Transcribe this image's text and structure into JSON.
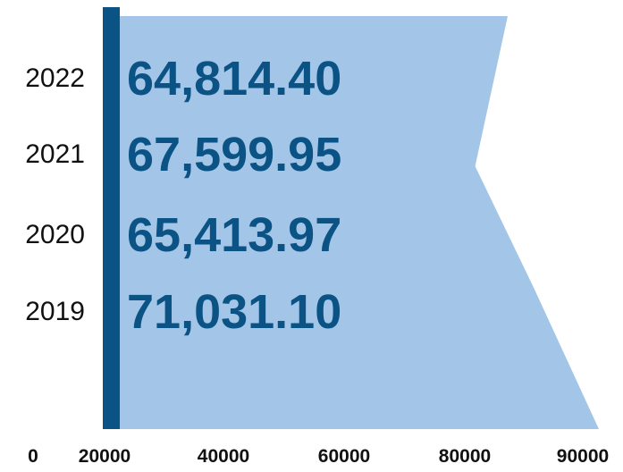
{
  "chart_data": {
    "type": "area",
    "orientation": "horizontal",
    "title": "",
    "xlabel": "",
    "ylabel": "",
    "categories": [
      "2022",
      "2021",
      "2020",
      "2019"
    ],
    "values": [
      64814.4,
      67599.95,
      65413.97,
      71031.1
    ],
    "value_labels": [
      "64,814.40",
      "67,599.95",
      "65,413.97",
      "71,031.10"
    ],
    "area_profile": {
      "x": [
        78000,
        73000,
        82000,
        92000
      ],
      "y_points": [
        "top",
        "2021",
        "2019",
        "bottom"
      ]
    },
    "x_ticks": [
      "0",
      "20000",
      "40000",
      "60000",
      "80000",
      "90000"
    ],
    "xlim": [
      0,
      92000
    ],
    "grid": false,
    "legend": "none",
    "colors": {
      "area_fill": "#a3c6e8",
      "axis_bar": "#0b5384",
      "value_text": "#0b5384",
      "text": "#111111"
    }
  }
}
